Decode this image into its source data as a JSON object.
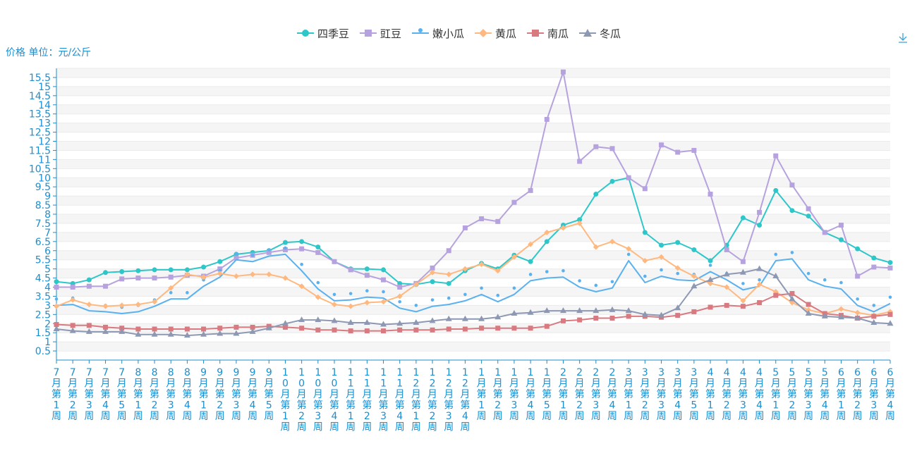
{
  "toolbar": {
    "download_icon": "download-icon"
  },
  "colors": {
    "axis": "#1a8fd0",
    "grid_band": "#f5f5f5",
    "grid_line": "#ebebeb"
  },
  "chart_data": {
    "type": "line",
    "ylabel": "价格 单位：元/公斤",
    "ylim": [
      0,
      16
    ],
    "yticks": [
      "0.5",
      "1",
      "1.5",
      "2",
      "2.5",
      "3",
      "3.5",
      "4",
      "4.5",
      "5",
      "5.5",
      "6",
      "6.5",
      "7",
      "7.5",
      "8",
      "8.5",
      "9",
      "9.5",
      "10",
      "10.5",
      "11",
      "11.5",
      "12",
      "12.5",
      "13",
      "13.5",
      "14",
      "14.5",
      "15",
      "15.5"
    ],
    "grid": true,
    "legend_position": "top-center",
    "categories": [
      "7月第1周",
      "7月第2周",
      "7月第3周",
      "7月第4周",
      "7月第5周",
      "8月第1周",
      "8月第2周",
      "8月第3周",
      "8月第4周",
      "9月第1周",
      "9月第2周",
      "9月第3周",
      "9月第4周",
      "9月第5周",
      "10月第1周",
      "10月第2周",
      "10月第3周",
      "10月第4周",
      "11月第1周",
      "11月第2周",
      "11月第3周",
      "11月第4周",
      "12月第1周",
      "12月第2周",
      "12月第3周",
      "12月第4周",
      "1月第1周",
      "1月第2周",
      "1月第3周",
      "1月第4周",
      "1月第5周",
      "2月第1周",
      "2月第2周",
      "2月第3周",
      "2月第4周",
      "3月第1周",
      "3月第2周",
      "3月第3周",
      "3月第4周",
      "3月第5周",
      "4月第1周",
      "4月第2周",
      "4月第3周",
      "4月第4周",
      "5月第1周",
      "5月第2周",
      "5月第3周",
      "5月第4周",
      "6月第1周",
      "6月第2周",
      "6月第3周",
      "6月第4周"
    ],
    "series": [
      {
        "name": "四季豆",
        "color": "#2ec7c9",
        "symbol": "circle",
        "values": [
          4.3,
          4.2,
          4.4,
          4.8,
          4.85,
          4.9,
          4.95,
          4.95,
          4.95,
          5.1,
          5.4,
          5.8,
          5.9,
          6.0,
          6.45,
          6.5,
          6.2,
          5.4,
          5.0,
          5.0,
          4.95,
          4.2,
          4.15,
          4.3,
          4.2,
          4.9,
          5.3,
          5.0,
          5.75,
          5.4,
          6.5,
          7.4,
          7.7,
          9.1,
          9.8,
          10.0,
          7.0,
          6.3,
          6.45,
          6.05,
          5.45,
          6.3,
          7.8,
          7.4,
          9.3,
          8.2,
          7.9,
          7.0,
          6.6,
          6.1,
          5.6,
          5.35
        ]
      },
      {
        "name": "豇豆",
        "color": "#b6a2de",
        "symbol": "square",
        "values": [
          4.0,
          4.0,
          4.05,
          4.05,
          4.45,
          4.5,
          4.5,
          4.55,
          4.65,
          4.6,
          5.0,
          5.6,
          5.75,
          5.9,
          6.05,
          6.1,
          5.9,
          5.4,
          4.95,
          4.65,
          4.4,
          4.0,
          4.2,
          5.05,
          6.0,
          7.25,
          7.75,
          7.6,
          8.65,
          9.3,
          13.2,
          15.8,
          10.9,
          11.7,
          11.6,
          10.0,
          9.4,
          11.8,
          11.4,
          11.5,
          9.1,
          6.05,
          5.4,
          8.1,
          11.2,
          9.6,
          8.3,
          7.0,
          7.4,
          4.6,
          5.1,
          5.05
        ]
      },
      {
        "name": "嫩小瓜",
        "color": "#5ab1ef",
        "symbol": "pin",
        "values": [
          3.0,
          3.05,
          2.7,
          2.65,
          2.55,
          2.65,
          2.95,
          3.35,
          3.35,
          4.05,
          4.55,
          5.5,
          5.4,
          5.7,
          5.8,
          4.9,
          3.9,
          3.25,
          3.3,
          3.45,
          3.4,
          2.85,
          2.65,
          2.95,
          3.05,
          3.25,
          3.6,
          3.2,
          3.6,
          4.35,
          4.5,
          4.55,
          4.0,
          3.75,
          3.95,
          5.45,
          4.25,
          4.6,
          4.4,
          4.35,
          4.85,
          4.4,
          3.85,
          4.05,
          5.45,
          5.55,
          4.4,
          4.05,
          3.9,
          3.0,
          2.65,
          3.1
        ]
      },
      {
        "name": "黄瓜",
        "color": "#ffb980",
        "symbol": "diamond",
        "values": [
          2.95,
          3.3,
          3.05,
          2.95,
          3.0,
          3.05,
          3.2,
          3.95,
          4.7,
          4.55,
          4.75,
          4.6,
          4.7,
          4.7,
          4.5,
          4.05,
          3.45,
          3.05,
          2.95,
          3.15,
          3.2,
          3.5,
          4.15,
          4.8,
          4.7,
          5.0,
          5.25,
          4.9,
          5.65,
          6.35,
          7.0,
          7.25,
          7.5,
          6.2,
          6.5,
          6.1,
          5.45,
          5.65,
          5.05,
          4.6,
          4.2,
          4.0,
          3.25,
          4.15,
          3.75,
          3.15,
          2.75,
          2.55,
          2.8,
          2.6,
          2.45,
          2.65
        ]
      },
      {
        "name": "南瓜",
        "color": "#d87a80",
        "symbol": "square",
        "values": [
          1.95,
          1.9,
          1.9,
          1.8,
          1.75,
          1.7,
          1.7,
          1.7,
          1.7,
          1.7,
          1.75,
          1.8,
          1.8,
          1.85,
          1.8,
          1.75,
          1.65,
          1.65,
          1.6,
          1.6,
          1.6,
          1.65,
          1.65,
          1.65,
          1.7,
          1.7,
          1.75,
          1.75,
          1.75,
          1.75,
          1.85,
          2.15,
          2.2,
          2.3,
          2.3,
          2.4,
          2.4,
          2.35,
          2.45,
          2.65,
          2.9,
          3.0,
          2.95,
          3.15,
          3.55,
          3.65,
          3.05,
          2.55,
          2.45,
          2.3,
          2.4,
          2.5
        ]
      },
      {
        "name": "冬瓜",
        "color": "#8d98b3",
        "symbol": "triangle",
        "values": [
          1.7,
          1.6,
          1.55,
          1.55,
          1.55,
          1.4,
          1.4,
          1.4,
          1.35,
          1.4,
          1.45,
          1.45,
          1.55,
          1.75,
          2.0,
          2.2,
          2.2,
          2.15,
          2.05,
          2.05,
          1.95,
          2.0,
          2.05,
          2.15,
          2.25,
          2.25,
          2.25,
          2.35,
          2.55,
          2.6,
          2.7,
          2.7,
          2.7,
          2.7,
          2.75,
          2.7,
          2.5,
          2.45,
          2.85,
          4.05,
          4.4,
          4.7,
          4.8,
          5.0,
          4.6,
          3.35,
          2.55,
          2.4,
          2.35,
          2.3,
          2.05,
          2.0
        ]
      }
    ]
  }
}
